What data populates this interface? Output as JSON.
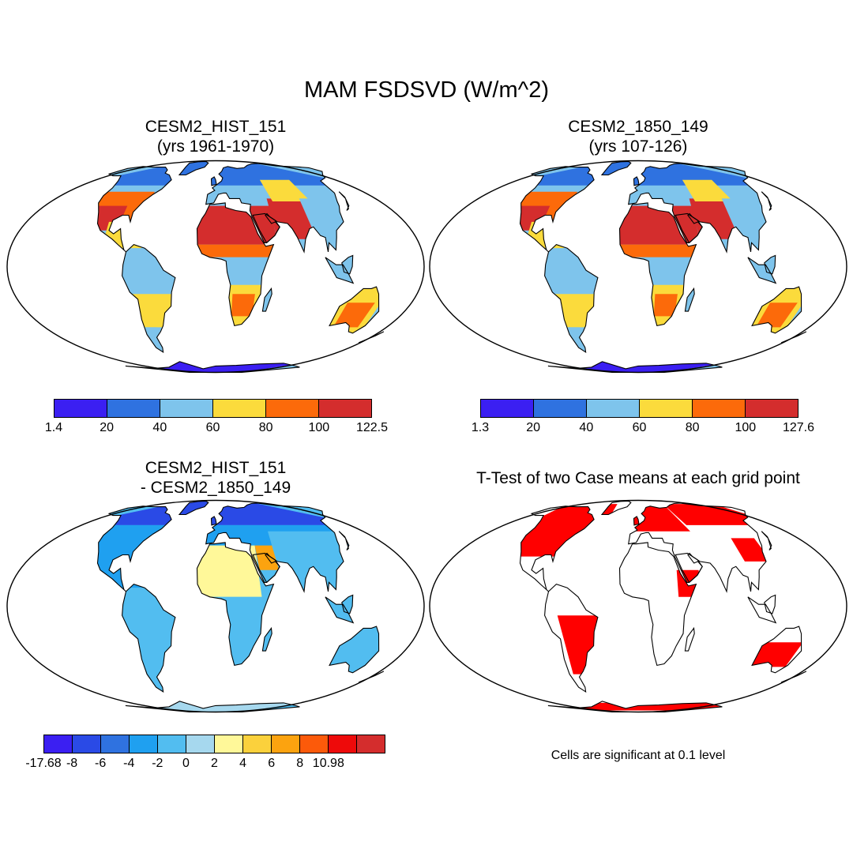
{
  "title": "MAM FSDSVD (W/m^2)",
  "panels": {
    "top_left": {
      "title1": "CESM2_HIST_151",
      "title2": "(yrs 1961-1970)"
    },
    "top_right": {
      "title1": "CESM2_1850_149",
      "title2": "(yrs 107-126)"
    },
    "bottom_left": {
      "title1": "CESM2_HIST_151",
      "title2": "- CESM2_1850_149"
    },
    "bottom_right": {
      "title1": "T-Test of two Case means at each grid point",
      "note": "Cells are significant at 0.1 level"
    }
  },
  "colorbars": {
    "top_left": {
      "labels": [
        "1.4",
        "20",
        "40",
        "60",
        "80",
        "100",
        "122.5"
      ],
      "colors": [
        "#3b1ff2",
        "#2f72e0",
        "#7ec4ec",
        "#fbdb3c",
        "#fc6a0a",
        "#d42d2d"
      ]
    },
    "top_right": {
      "labels": [
        "1.3",
        "20",
        "40",
        "60",
        "80",
        "100",
        "127.6"
      ],
      "colors": [
        "#3b1ff2",
        "#2f72e0",
        "#7ec4ec",
        "#fbdb3c",
        "#fc6a0a",
        "#d42d2d"
      ]
    },
    "bottom_left": {
      "labels": [
        "-17.68",
        "-8",
        "-6",
        "-4",
        "-2",
        "0",
        "2",
        "4",
        "6",
        "8",
        "10.98"
      ],
      "colors": [
        "#3b1ff2",
        "#2a4ae6",
        "#2f72e0",
        "#1fa0f0",
        "#52bdf0",
        "#a6d8ee",
        "#fff899",
        "#fbd13c",
        "#fca30f",
        "#fc5a0a",
        "#ee0a0a",
        "#d42d2d"
      ]
    }
  },
  "map_colors": {
    "ocean": "#ffffff",
    "significant": "#ff0000"
  }
}
